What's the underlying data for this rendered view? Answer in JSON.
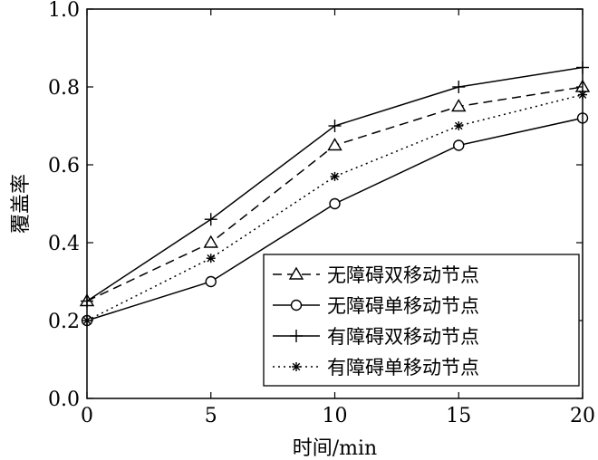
{
  "chart_data": {
    "type": "line",
    "title": "",
    "xlabel": "时间/min",
    "ylabel": "覆盖率",
    "xlim": [
      0,
      20
    ],
    "ylim": [
      0,
      1.0
    ],
    "x_ticks": [
      "0",
      "5",
      "10",
      "15",
      "20"
    ],
    "y_ticks": [
      "0.0",
      "0.2",
      "0.4",
      "0.6",
      "0.8",
      "1.0"
    ],
    "x": [
      0,
      5,
      10,
      15,
      20
    ],
    "grid": false,
    "legend_position": "bottom-right",
    "series": [
      {
        "name": "无障碍双移动节点",
        "values": [
          0.25,
          0.4,
          0.65,
          0.75,
          0.8
        ],
        "line_style": "dashed",
        "marker": "triangle"
      },
      {
        "name": "无障碍单移动节点",
        "values": [
          0.2,
          0.3,
          0.5,
          0.65,
          0.72
        ],
        "line_style": "solid",
        "marker": "circle"
      },
      {
        "name": "有障碍双移动节点",
        "values": [
          0.25,
          0.46,
          0.7,
          0.8,
          0.85
        ],
        "line_style": "solid",
        "marker": "plus"
      },
      {
        "name": "有障碍单移动节点",
        "values": [
          0.2,
          0.36,
          0.57,
          0.7,
          0.78
        ],
        "line_style": "dotted",
        "marker": "star"
      }
    ]
  }
}
